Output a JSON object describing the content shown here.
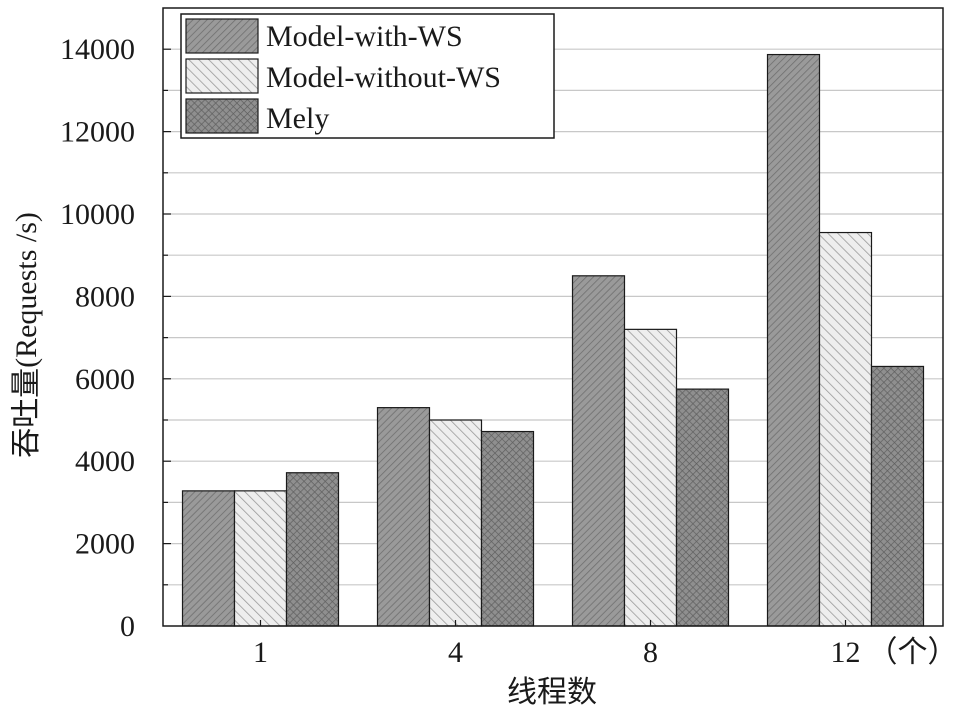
{
  "chart_data": {
    "type": "bar",
    "categories": [
      "1",
      "4",
      "8",
      "12"
    ],
    "category_suffix": "（个）",
    "ylabel": "吞吐量(Requests /s)",
    "xlabel": "线程数",
    "ylim": [
      0,
      15000
    ],
    "yticks": [
      0,
      2000,
      4000,
      6000,
      8000,
      10000,
      12000,
      14000
    ],
    "grid": true,
    "legend_position": "top-left",
    "series": [
      {
        "name": "Model-with-WS",
        "values": [
          3280,
          5300,
          8500,
          13870
        ],
        "pattern": "hatch-dense",
        "color": "#9a9a9a"
      },
      {
        "name": "Model-without-WS",
        "values": [
          3280,
          5000,
          7200,
          9550
        ],
        "pattern": "hatch-light",
        "color": "#e8e8e8"
      },
      {
        "name": "Mely",
        "values": [
          3720,
          4720,
          5750,
          6300
        ],
        "pattern": "crosshatch",
        "color": "#8a8a8a"
      }
    ]
  }
}
